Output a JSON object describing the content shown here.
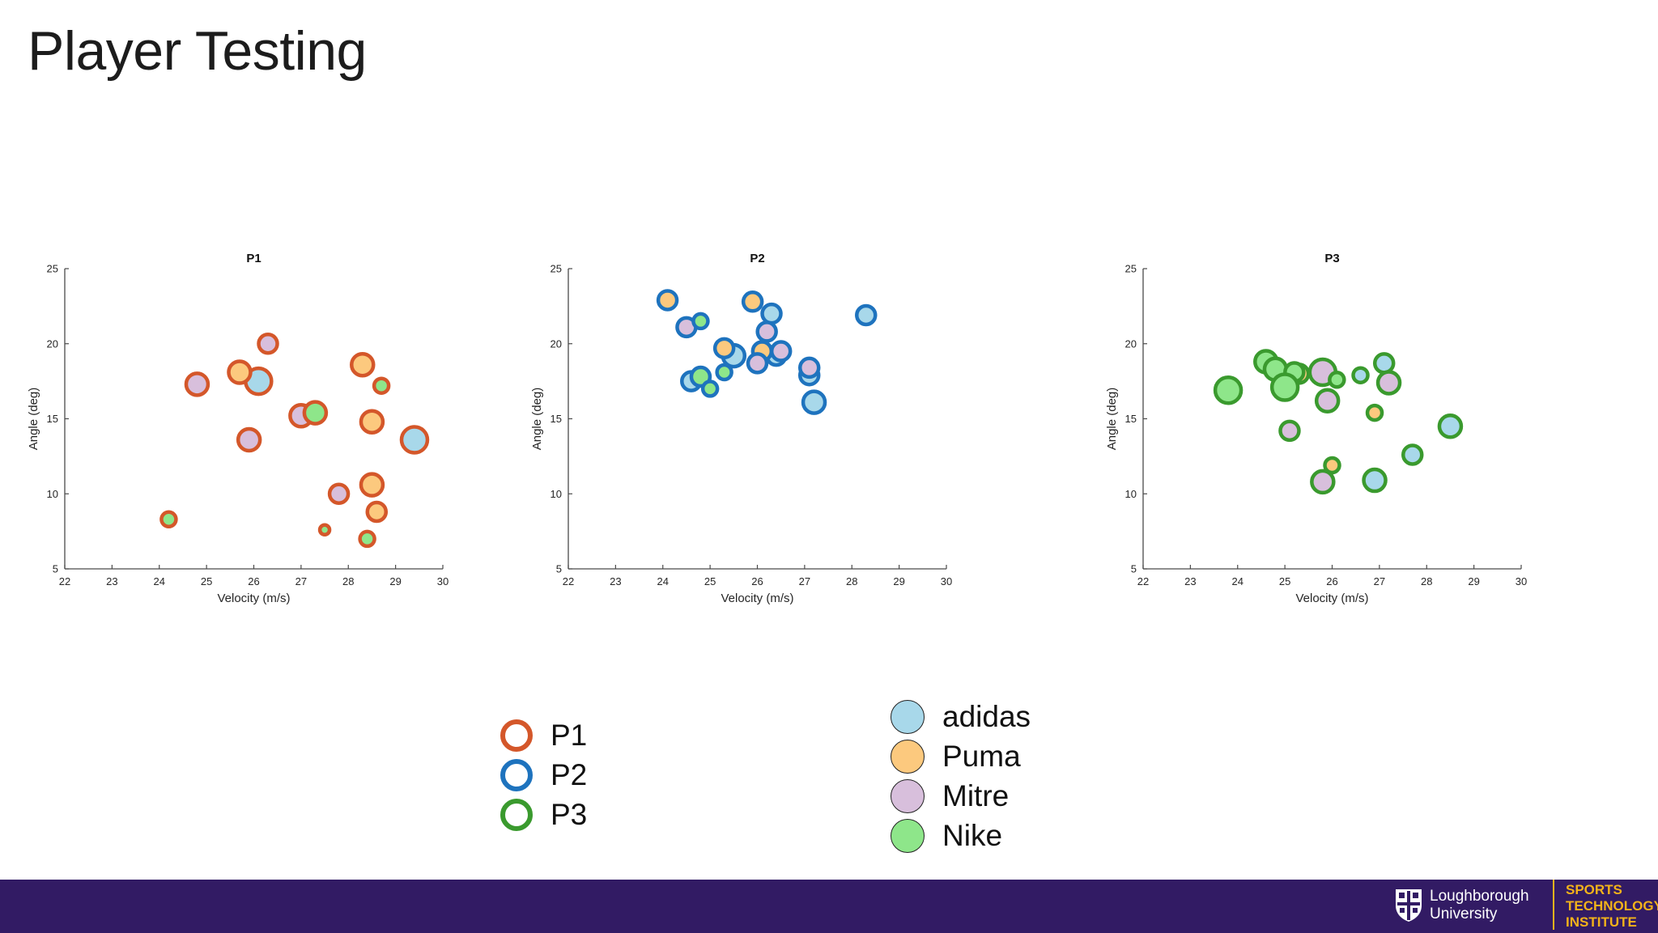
{
  "page": {
    "title": "Player Testing"
  },
  "chart_data": [
    {
      "type": "scatter",
      "title": "P1",
      "xlabel": "Velocity (m/s)",
      "ylabel": "Angle (deg)",
      "xlim": [
        22,
        30
      ],
      "ylim": [
        5,
        25
      ],
      "xticks": [
        "22",
        "23",
        "24",
        "25",
        "26",
        "27",
        "28",
        "29",
        "30"
      ],
      "yticks": [
        "5",
        "10",
        "15",
        "20",
        "25"
      ],
      "edge_color": "#d4572a",
      "series": [
        {
          "name": "adidas",
          "points": [
            {
              "x": 26.1,
              "y": 17.5,
              "size": "large"
            },
            {
              "x": 29.4,
              "y": 13.6,
              "size": "large"
            }
          ]
        },
        {
          "name": "Puma",
          "points": [
            {
              "x": 25.7,
              "y": 18.1,
              "size": "medium"
            },
            {
              "x": 28.3,
              "y": 18.6,
              "size": "medium"
            },
            {
              "x": 28.5,
              "y": 14.8,
              "size": "medium"
            },
            {
              "x": 28.5,
              "y": 10.6,
              "size": "medium"
            },
            {
              "x": 28.6,
              "y": 8.8,
              "size": "small"
            }
          ]
        },
        {
          "name": "Mitre",
          "points": [
            {
              "x": 24.8,
              "y": 17.3,
              "size": "medium"
            },
            {
              "x": 26.3,
              "y": 20.0,
              "size": "small"
            },
            {
              "x": 27.0,
              "y": 15.2,
              "size": "medium"
            },
            {
              "x": 25.9,
              "y": 13.6,
              "size": "medium"
            },
            {
              "x": 27.8,
              "y": 10.0,
              "size": "small"
            }
          ]
        },
        {
          "name": "Nike",
          "points": [
            {
              "x": 27.3,
              "y": 15.4,
              "size": "medium"
            },
            {
              "x": 28.7,
              "y": 17.2,
              "size": "tiny"
            },
            {
              "x": 24.2,
              "y": 8.3,
              "size": "tiny"
            },
            {
              "x": 27.5,
              "y": 7.6,
              "size": "xtiny"
            },
            {
              "x": 28.4,
              "y": 7.0,
              "size": "tiny"
            }
          ]
        }
      ]
    },
    {
      "type": "scatter",
      "title": "P2",
      "xlabel": "Velocity (m/s)",
      "ylabel": "Angle (deg)",
      "xlim": [
        22,
        30
      ],
      "ylim": [
        5,
        25
      ],
      "xticks": [
        "22",
        "23",
        "24",
        "25",
        "26",
        "27",
        "28",
        "29",
        "30"
      ],
      "yticks": [
        "5",
        "10",
        "15",
        "20",
        "25"
      ],
      "edge_color": "#1e73be",
      "series": [
        {
          "name": "adidas",
          "points": [
            {
              "x": 26.3,
              "y": 22.0,
              "size": "small"
            },
            {
              "x": 28.3,
              "y": 21.9,
              "size": "small"
            },
            {
              "x": 25.5,
              "y": 19.2,
              "size": "medium"
            },
            {
              "x": 26.4,
              "y": 19.2,
              "size": "small"
            },
            {
              "x": 27.1,
              "y": 17.9,
              "size": "small"
            },
            {
              "x": 27.2,
              "y": 16.1,
              "size": "medium"
            },
            {
              "x": 24.6,
              "y": 17.5,
              "size": "small"
            }
          ]
        },
        {
          "name": "Puma",
          "points": [
            {
              "x": 24.1,
              "y": 22.9,
              "size": "small"
            },
            {
              "x": 25.9,
              "y": 22.8,
              "size": "small"
            },
            {
              "x": 25.3,
              "y": 19.7,
              "size": "small"
            },
            {
              "x": 26.1,
              "y": 19.5,
              "size": "small"
            }
          ]
        },
        {
          "name": "Mitre",
          "points": [
            {
              "x": 24.5,
              "y": 21.1,
              "size": "small"
            },
            {
              "x": 26.2,
              "y": 20.8,
              "size": "small"
            },
            {
              "x": 26.5,
              "y": 19.5,
              "size": "small"
            },
            {
              "x": 26.0,
              "y": 18.7,
              "size": "small"
            },
            {
              "x": 27.1,
              "y": 18.4,
              "size": "small"
            }
          ]
        },
        {
          "name": "Nike",
          "points": [
            {
              "x": 24.8,
              "y": 21.5,
              "size": "tiny"
            },
            {
              "x": 24.8,
              "y": 17.8,
              "size": "small"
            },
            {
              "x": 25.3,
              "y": 18.1,
              "size": "tiny"
            },
            {
              "x": 25.0,
              "y": 17.0,
              "size": "tiny"
            }
          ]
        }
      ]
    },
    {
      "type": "scatter",
      "title": "P3",
      "xlabel": "Velocity (m/s)",
      "ylabel": "Angle (deg)",
      "xlim": [
        22,
        30
      ],
      "ylim": [
        5,
        25
      ],
      "xticks": [
        "22",
        "23",
        "24",
        "25",
        "26",
        "27",
        "28",
        "29",
        "30"
      ],
      "yticks": [
        "5",
        "10",
        "15",
        "20",
        "25"
      ],
      "edge_color": "#3a9a2e",
      "series": [
        {
          "name": "adidas",
          "points": [
            {
              "x": 26.6,
              "y": 17.9,
              "size": "tiny"
            },
            {
              "x": 27.1,
              "y": 18.7,
              "size": "small"
            },
            {
              "x": 28.5,
              "y": 14.5,
              "size": "medium"
            },
            {
              "x": 27.7,
              "y": 12.6,
              "size": "small"
            },
            {
              "x": 26.9,
              "y": 10.9,
              "size": "medium"
            }
          ]
        },
        {
          "name": "Puma",
          "points": [
            {
              "x": 25.3,
              "y": 18.0,
              "size": "small"
            },
            {
              "x": 26.9,
              "y": 15.4,
              "size": "tiny"
            },
            {
              "x": 26.0,
              "y": 11.9,
              "size": "tiny"
            }
          ]
        },
        {
          "name": "Mitre",
          "points": [
            {
              "x": 25.8,
              "y": 18.1,
              "size": "large"
            },
            {
              "x": 27.2,
              "y": 17.4,
              "size": "medium"
            },
            {
              "x": 25.9,
              "y": 16.2,
              "size": "medium"
            },
            {
              "x": 25.1,
              "y": 14.2,
              "size": "small"
            },
            {
              "x": 25.8,
              "y": 10.8,
              "size": "medium"
            }
          ]
        },
        {
          "name": "Nike",
          "points": [
            {
              "x": 24.6,
              "y": 18.8,
              "size": "medium"
            },
            {
              "x": 24.8,
              "y": 18.3,
              "size": "medium"
            },
            {
              "x": 25.2,
              "y": 18.1,
              "size": "small"
            },
            {
              "x": 26.1,
              "y": 17.6,
              "size": "tiny"
            },
            {
              "x": 25.0,
              "y": 17.1,
              "size": "large"
            },
            {
              "x": 23.8,
              "y": 16.9,
              "size": "large"
            }
          ]
        }
      ]
    }
  ],
  "legend_players": [
    {
      "label": "P1",
      "color": "#d4572a"
    },
    {
      "label": "P2",
      "color": "#1e73be"
    },
    {
      "label": "P3",
      "color": "#3a9a2e"
    }
  ],
  "legend_brands": [
    {
      "label": "adidas",
      "color": "#a8d8ea"
    },
    {
      "label": "Puma",
      "color": "#fcc97e"
    },
    {
      "label": "Mitre",
      "color": "#d8bfdc"
    },
    {
      "label": "Nike",
      "color": "#8ee68a"
    }
  ],
  "footer": {
    "university_line1": "Loughborough",
    "university_line2": "University",
    "institute_line1": "SPORTS",
    "institute_line2": "TECHNOLOGY",
    "institute_line3": "INSTITUTE"
  }
}
